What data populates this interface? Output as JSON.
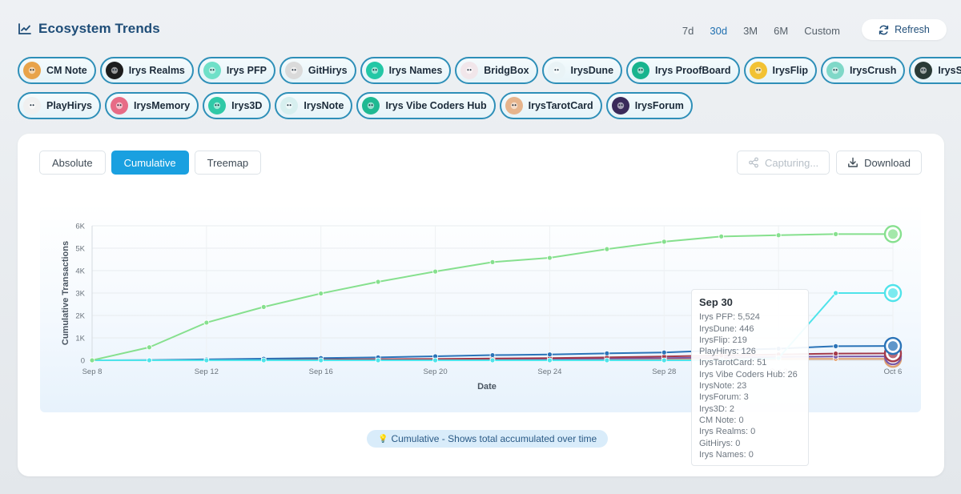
{
  "header": {
    "title": "Ecosystem Trends",
    "refresh_label": "Refresh"
  },
  "ranges": [
    "7d",
    "30d",
    "3M",
    "6M",
    "Custom"
  ],
  "active_range": "30d",
  "projects_row1": [
    {
      "name": "CM Note",
      "icon": "cat-icon",
      "color": "#e8a34a"
    },
    {
      "name": "Irys Realms",
      "icon": "realms-icon",
      "color": "#1d1d1d"
    },
    {
      "name": "Irys PFP",
      "icon": "pfp-icon",
      "color": "#6fe0c8"
    },
    {
      "name": "GitHirys",
      "icon": "git-icon",
      "color": "#dadada"
    },
    {
      "name": "Irys Names",
      "icon": "names-icon",
      "color": "#23c7a6"
    },
    {
      "name": "BridgBox",
      "icon": "bridge-icon",
      "color": "#f1e6ea"
    },
    {
      "name": "IrysDune",
      "icon": "dune-icon",
      "color": "#e9f3f6"
    },
    {
      "name": "Irys ProofBoard",
      "icon": "proofboard-icon",
      "color": "#18b48e"
    },
    {
      "name": "IrysFlip",
      "icon": "flip-icon",
      "color": "#f2c233"
    },
    {
      "name": "IrysCrush",
      "icon": "crush-icon",
      "color": "#7fd8c8"
    },
    {
      "name": "IrysSlot",
      "icon": "slot-icon",
      "color": "#2a3a36"
    }
  ],
  "projects_row2": [
    {
      "name": "PlayHirys",
      "icon": "play-icon",
      "color": "#f0f0f0"
    },
    {
      "name": "IrysMemory",
      "icon": "memory-icon",
      "color": "#e76b86"
    },
    {
      "name": "Irys3D",
      "icon": "3d-icon",
      "color": "#2fc9a7"
    },
    {
      "name": "IrysNote",
      "icon": "note-icon",
      "color": "#d7efef"
    },
    {
      "name": "Irys Vibe Coders Hub",
      "icon": "vibe-icon",
      "color": "#20b992"
    },
    {
      "name": "IrysTarotCard",
      "icon": "tarot-icon",
      "color": "#e6b48c"
    },
    {
      "name": "IrysForum",
      "icon": "forum-icon",
      "color": "#3a2a5a"
    }
  ],
  "view_tabs": [
    "Absolute",
    "Cumulative",
    "Treemap"
  ],
  "active_view": "Cumulative",
  "actions": {
    "capture_label": "Capturing...",
    "download_label": "Download"
  },
  "chart_data": {
    "type": "line",
    "xlabel": "Date",
    "ylabel": "Cumulative Transactions",
    "ylim": [
      0,
      6000
    ],
    "y_ticks": [
      "0",
      "1K",
      "2K",
      "3K",
      "4K",
      "5K",
      "6K"
    ],
    "x_ticks": [
      "Sep 8",
      "Sep 12",
      "Sep 16",
      "Sep 20",
      "Sep 24",
      "Sep 28",
      "Oct 2",
      "Oct 6"
    ],
    "x": [
      "Sep 8",
      "Sep 10",
      "Sep 12",
      "Sep 14",
      "Sep 16",
      "Sep 18",
      "Sep 20",
      "Sep 22",
      "Sep 24",
      "Sep 26",
      "Sep 28",
      "Sep 30",
      "Oct 2",
      "Oct 4",
      "Oct 6"
    ],
    "grid": true,
    "series": [
      {
        "name": "Irys PFP",
        "color": "#86e08e",
        "values": [
          0,
          580,
          1680,
          2380,
          2980,
          3500,
          3960,
          4380,
          4570,
          4960,
          5290,
          5524,
          5580,
          5630,
          5630
        ]
      },
      {
        "name": "Irys Names",
        "color": "#4fe3ea",
        "values": [
          0,
          0,
          0,
          0,
          0,
          0,
          0,
          0,
          0,
          0,
          0,
          0,
          100,
          3000,
          3000
        ]
      },
      {
        "name": "IrysDune",
        "color": "#2a73b8",
        "values": [
          0,
          10,
          40,
          70,
          100,
          130,
          180,
          230,
          260,
          310,
          350,
          446,
          520,
          630,
          640
        ]
      },
      {
        "name": "IrysFlip",
        "color": "#a33a4a",
        "values": [
          0,
          0,
          10,
          20,
          30,
          45,
          60,
          80,
          100,
          130,
          170,
          219,
          260,
          300,
          310
        ]
      },
      {
        "name": "PlayHirys",
        "color": "#7a5aa8",
        "values": [
          0,
          0,
          5,
          10,
          15,
          25,
          35,
          50,
          65,
          80,
          100,
          126,
          150,
          170,
          175
        ]
      },
      {
        "name": "IrysTarotCard",
        "color": "#e0a070",
        "values": [
          0,
          0,
          0,
          5,
          8,
          12,
          16,
          22,
          28,
          35,
          42,
          51,
          58,
          62,
          64
        ]
      }
    ]
  },
  "tooltip": {
    "title": "Sep 30",
    "lines": [
      "Irys PFP: 5,524",
      "IrysDune: 446",
      "IrysFlip: 219",
      "PlayHirys: 126",
      "IrysTarotCard: 51",
      "Irys Vibe Coders Hub: 26",
      "IrysNote: 23",
      "IrysForum: 3",
      "Irys3D: 2",
      "CM Note: 0",
      "Irys Realms: 0",
      "GitHirys: 0",
      "Irys Names: 0"
    ]
  },
  "hint": {
    "icon": "lightbulb-icon",
    "text": "Cumulative - Shows total accumulated over time"
  }
}
